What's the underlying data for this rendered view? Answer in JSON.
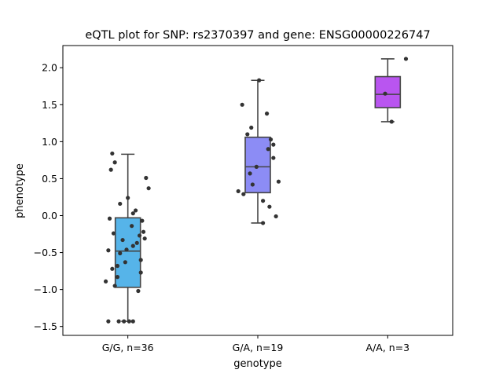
{
  "chart_data": {
    "type": "box",
    "title": "eQTL plot for SNP: rs2370397 and gene: ENSG00000226747",
    "xlabel": "genotype",
    "ylabel": "phenotype",
    "ylim": [
      -1.62,
      2.3
    ],
    "yticks": [
      -1.5,
      -1.0,
      -0.5,
      0.0,
      0.5,
      1.0,
      1.5,
      2.0
    ],
    "ytick_labels": [
      "−1.5",
      "−1.0",
      "−0.5",
      "0.0",
      "0.5",
      "1.0",
      "1.5",
      "2.0"
    ],
    "categories": [
      "G/G, n=36",
      "G/A, n=19",
      "A/A, n=3"
    ],
    "grid": false,
    "boxes": [
      {
        "category": "G/G, n=36",
        "color": "#56b4e9",
        "whisker_low": -1.43,
        "q1": -0.97,
        "median": -0.48,
        "q3": -0.03,
        "whisker_high": 0.83
      },
      {
        "category": "G/A, n=19",
        "color": "#8c8cf5",
        "whisker_low": -0.1,
        "q1": 0.31,
        "median": 0.66,
        "q3": 1.06,
        "whisker_high": 1.83
      },
      {
        "category": "A/A, n=3",
        "color": "#b955f0",
        "whisker_low": 1.27,
        "q1": 1.46,
        "median": 1.64,
        "q3": 1.88,
        "whisker_high": 2.12
      }
    ],
    "points": [
      [
        [
          -0.12,
          0.84
        ],
        [
          -0.1,
          0.72
        ],
        [
          -0.13,
          0.62
        ],
        [
          0.14,
          0.51
        ],
        [
          0.16,
          0.37
        ],
        [
          0.0,
          0.24
        ],
        [
          -0.06,
          0.16
        ],
        [
          0.06,
          0.07
        ],
        [
          0.04,
          0.03
        ],
        [
          -0.14,
          -0.04
        ],
        [
          0.11,
          -0.07
        ],
        [
          0.03,
          -0.14
        ],
        [
          0.12,
          -0.22
        ],
        [
          -0.11,
          -0.24
        ],
        [
          0.09,
          -0.27
        ],
        [
          0.13,
          -0.31
        ],
        [
          -0.04,
          -0.33
        ],
        [
          0.07,
          -0.37
        ],
        [
          0.04,
          -0.41
        ],
        [
          -0.01,
          -0.46
        ],
        [
          -0.15,
          -0.47
        ],
        [
          -0.06,
          -0.51
        ],
        [
          0.1,
          -0.6
        ],
        [
          -0.02,
          -0.63
        ],
        [
          -0.08,
          -0.68
        ],
        [
          -0.12,
          -0.72
        ],
        [
          0.1,
          -0.77
        ],
        [
          -0.08,
          -0.83
        ],
        [
          -0.17,
          -0.89
        ],
        [
          -0.1,
          -0.95
        ],
        [
          0.08,
          -1.02
        ],
        [
          -0.15,
          -1.43
        ],
        [
          -0.07,
          -1.43
        ],
        [
          -0.03,
          -1.43
        ],
        [
          0.01,
          -1.43
        ],
        [
          0.04,
          -1.43
        ]
      ],
      [
        [
          0.01,
          1.83
        ],
        [
          -0.12,
          1.5
        ],
        [
          0.07,
          1.38
        ],
        [
          -0.05,
          1.19
        ],
        [
          -0.08,
          1.1
        ],
        [
          0.1,
          1.03
        ],
        [
          0.12,
          0.96
        ],
        [
          0.08,
          0.9
        ],
        [
          0.12,
          0.78
        ],
        [
          -0.01,
          0.66
        ],
        [
          -0.06,
          0.57
        ],
        [
          0.16,
          0.46
        ],
        [
          -0.04,
          0.42
        ],
        [
          -0.15,
          0.33
        ],
        [
          -0.11,
          0.29
        ],
        [
          0.04,
          0.2
        ],
        [
          0.09,
          0.12
        ],
        [
          0.14,
          -0.01
        ],
        [
          0.04,
          -0.1
        ]
      ],
      [
        [
          0.14,
          2.12
        ],
        [
          -0.02,
          1.65
        ],
        [
          0.03,
          1.27
        ]
      ]
    ]
  }
}
